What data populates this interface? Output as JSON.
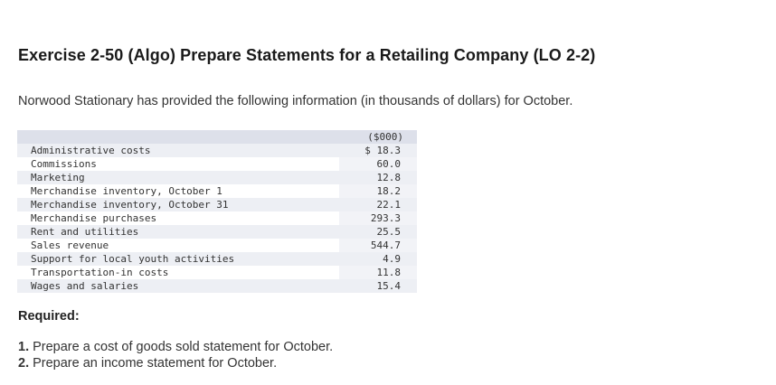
{
  "title": "Exercise 2-50 (Algo) Prepare Statements for a Retailing Company (LO 2-2)",
  "intro": "Norwood Stationary has provided the following information (in thousands of dollars) for October.",
  "table": {
    "header": "($000)",
    "rows": [
      {
        "label": "Administrative costs",
        "value": "$ 18.3"
      },
      {
        "label": "Commissions",
        "value": "60.0"
      },
      {
        "label": "Marketing",
        "value": "12.8"
      },
      {
        "label": "Merchandise inventory, October 1",
        "value": "18.2"
      },
      {
        "label": "Merchandise inventory, October 31",
        "value": "22.1"
      },
      {
        "label": "Merchandise purchases",
        "value": "293.3"
      },
      {
        "label": "Rent and utilities",
        "value": "25.5"
      },
      {
        "label": "Sales revenue",
        "value": "544.7"
      },
      {
        "label": "Support for local youth activities",
        "value": "4.9"
      },
      {
        "label": "Transportation-in costs",
        "value": "11.8"
      },
      {
        "label": "Wages and salaries",
        "value": "15.4"
      }
    ]
  },
  "required": {
    "heading": "Required:",
    "items": [
      {
        "num": "1.",
        "text": "Prepare a cost of goods sold statement for October."
      },
      {
        "num": "2.",
        "text": "Prepare an income statement for October."
      }
    ]
  }
}
